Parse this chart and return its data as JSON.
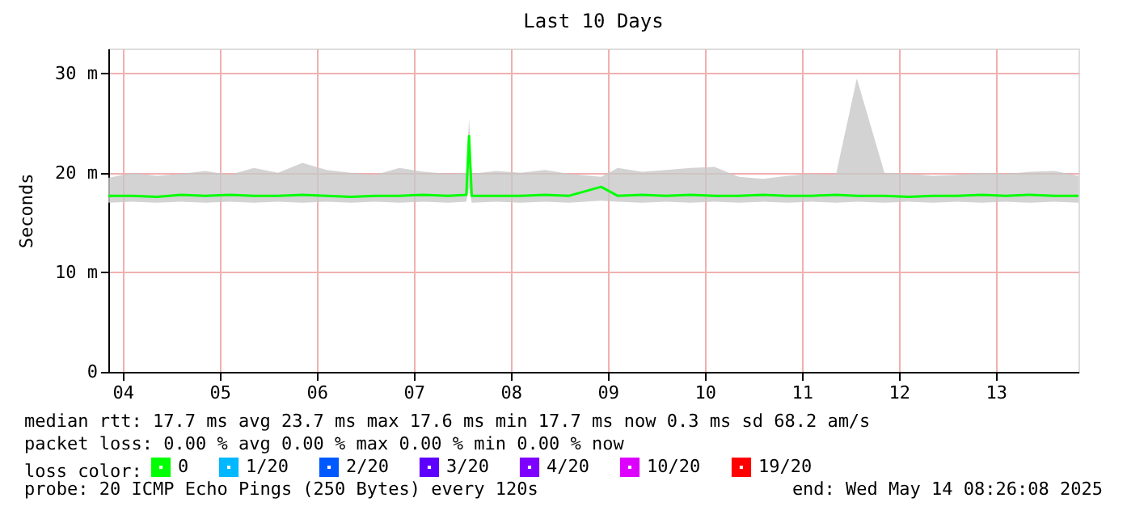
{
  "chart_data": {
    "type": "line",
    "title": "Last 10 Days",
    "ylabel": "Seconds",
    "xlim": [
      "2025-05-04T08:26",
      "2025-05-14T08:26"
    ],
    "xticks": [
      {
        "value": "2025-05-04T12:00",
        "label": "04"
      },
      {
        "value": "2025-05-05T12:00",
        "label": "05"
      },
      {
        "value": "2025-05-06T12:00",
        "label": "06"
      },
      {
        "value": "2025-05-07T12:00",
        "label": "07"
      },
      {
        "value": "2025-05-08T12:00",
        "label": "08"
      },
      {
        "value": "2025-05-09T12:00",
        "label": "09"
      },
      {
        "value": "2025-05-10T12:00",
        "label": "10"
      },
      {
        "value": "2025-05-11T12:00",
        "label": "11"
      },
      {
        "value": "2025-05-12T12:00",
        "label": "12"
      },
      {
        "value": "2025-05-13T12:00",
        "label": "13"
      }
    ],
    "ylim": [
      0,
      32.5
    ],
    "yticks": [
      0,
      {
        "value": 10,
        "label": "10 m"
      },
      {
        "value": 20,
        "label": "20 m"
      },
      {
        "value": 30,
        "label": "30 m"
      }
    ],
    "grid": true,
    "legend": "bottom",
    "legend_title": "loss color:",
    "x": [
      "2025-05-04T08:26",
      "2025-05-04T14:26",
      "2025-05-04T20:26",
      "2025-05-05T02:26",
      "2025-05-05T08:26",
      "2025-05-05T14:26",
      "2025-05-05T20:26",
      "2025-05-06T02:26",
      "2025-05-06T08:26",
      "2025-05-06T14:26",
      "2025-05-06T20:26",
      "2025-05-07T02:26",
      "2025-05-07T08:26",
      "2025-05-07T14:26",
      "2025-05-07T20:26",
      "2025-05-08T01:00",
      "2025-05-08T01:40",
      "2025-05-08T02:20",
      "2025-05-08T08:26",
      "2025-05-08T14:26",
      "2025-05-08T20:26",
      "2025-05-09T02:26",
      "2025-05-09T10:20",
      "2025-05-09T14:26",
      "2025-05-09T20:26",
      "2025-05-10T02:26",
      "2025-05-10T08:26",
      "2025-05-10T14:26",
      "2025-05-10T20:26",
      "2025-05-11T02:26",
      "2025-05-11T08:26",
      "2025-05-11T14:26",
      "2025-05-11T20:26",
      "2025-05-12T01:36",
      "2025-05-12T08:26",
      "2025-05-12T14:26",
      "2025-05-12T20:26",
      "2025-05-13T02:26",
      "2025-05-13T08:26",
      "2025-05-13T14:26",
      "2025-05-13T20:26",
      "2025-05-14T02:26",
      "2025-05-14T08:26"
    ],
    "series": [
      {
        "name": "0",
        "color": "#00ff00",
        "values": [
          17.7,
          17.7,
          17.6,
          17.8,
          17.7,
          17.8,
          17.7,
          17.7,
          17.8,
          17.7,
          17.6,
          17.7,
          17.7,
          17.8,
          17.7,
          17.8,
          23.7,
          17.7,
          17.7,
          17.7,
          17.8,
          17.7,
          18.6,
          17.7,
          17.8,
          17.7,
          17.8,
          17.7,
          17.7,
          17.8,
          17.7,
          17.7,
          17.8,
          17.7,
          17.7,
          17.6,
          17.7,
          17.7,
          17.8,
          17.7,
          17.8,
          17.7,
          17.7
        ],
        "lower": [
          17.0,
          17.1,
          17.0,
          17.1,
          17.0,
          17.1,
          17.0,
          17.1,
          17.0,
          17.1,
          17.0,
          17.1,
          17.0,
          17.1,
          17.0,
          17.1,
          18.5,
          17.0,
          17.1,
          17.0,
          17.1,
          17.0,
          17.2,
          17.1,
          17.0,
          17.1,
          17.0,
          17.1,
          17.0,
          17.1,
          17.0,
          17.1,
          17.0,
          17.1,
          17.0,
          17.1,
          17.0,
          17.1,
          17.0,
          17.1,
          17.0,
          17.1,
          17.0
        ],
        "upper": [
          19.5,
          20.0,
          19.7,
          19.9,
          20.2,
          19.8,
          20.5,
          20.0,
          21.0,
          20.3,
          20.0,
          19.8,
          20.5,
          20.1,
          19.9,
          20.0,
          25.5,
          19.9,
          20.2,
          20.0,
          20.3,
          19.9,
          19.6,
          20.5,
          20.1,
          20.3,
          20.5,
          20.6,
          19.6,
          19.4,
          19.7,
          19.9,
          19.8,
          29.5,
          20.0,
          19.9,
          19.7,
          19.8,
          20.0,
          19.9,
          20.1,
          20.2,
          19.7
        ]
      },
      {
        "name": "1/20",
        "color": "#00b8ff",
        "values": [
          null,
          null,
          null,
          null,
          null,
          null,
          null,
          null,
          null,
          null,
          null,
          null,
          null,
          null,
          null,
          null,
          null,
          null,
          null,
          null,
          null,
          null,
          null,
          null,
          null,
          null,
          null,
          null,
          null,
          null,
          null,
          null,
          null,
          null,
          null,
          null,
          null,
          null,
          null,
          null,
          null,
          null,
          null
        ]
      },
      {
        "name": "2/20",
        "color": "#0059ff",
        "values": [
          null,
          null,
          null,
          null,
          null,
          null,
          null,
          null,
          null,
          null,
          null,
          null,
          null,
          null,
          null,
          null,
          null,
          null,
          null,
          null,
          null,
          null,
          null,
          null,
          null,
          null,
          null,
          null,
          null,
          null,
          null,
          null,
          null,
          null,
          null,
          null,
          null,
          null,
          null,
          null,
          null,
          null,
          null
        ]
      },
      {
        "name": "3/20",
        "color": "#5e00ff",
        "values": [
          null,
          null,
          null,
          null,
          null,
          null,
          null,
          null,
          null,
          null,
          null,
          null,
          null,
          null,
          null,
          null,
          null,
          null,
          null,
          null,
          null,
          null,
          null,
          null,
          null,
          null,
          null,
          null,
          null,
          null,
          null,
          null,
          null,
          null,
          null,
          null,
          null,
          null,
          null,
          null,
          null,
          null,
          null
        ]
      },
      {
        "name": "4/20",
        "color": "#7e00ff",
        "values": [
          null,
          null,
          null,
          null,
          null,
          null,
          null,
          null,
          null,
          null,
          null,
          null,
          null,
          null,
          null,
          null,
          null,
          null,
          null,
          null,
          null,
          null,
          null,
          null,
          null,
          null,
          null,
          null,
          null,
          null,
          null,
          null,
          null,
          null,
          null,
          null,
          null,
          null,
          null,
          null,
          null,
          null,
          null
        ]
      },
      {
        "name": "10/20",
        "color": "#dd00ff",
        "values": [
          null,
          null,
          null,
          null,
          null,
          null,
          null,
          null,
          null,
          null,
          null,
          null,
          null,
          null,
          null,
          null,
          null,
          null,
          null,
          null,
          null,
          null,
          null,
          null,
          null,
          null,
          null,
          null,
          null,
          null,
          null,
          null,
          null,
          null,
          null,
          null,
          null,
          null,
          null,
          null,
          null,
          null,
          null
        ]
      },
      {
        "name": "19/20",
        "color": "#ff0000",
        "values": [
          null,
          null,
          null,
          null,
          null,
          null,
          null,
          null,
          null,
          null,
          null,
          null,
          null,
          null,
          null,
          null,
          null,
          null,
          null,
          null,
          null,
          null,
          null,
          null,
          null,
          null,
          null,
          null,
          null,
          null,
          null,
          null,
          null,
          null,
          null,
          null,
          null,
          null,
          null,
          null,
          null,
          null,
          null
        ]
      }
    ],
    "annotations": [
      "median rtt:  17.7 ms avg  23.7 ms max  17.6 ms min  17.7 ms now  0.3 ms sd  68.2   am/s",
      "packet loss: 0.00 % avg  0.00 % max  0.00 % min  0.00 % now",
      "probe:        20 ICMP Echo Pings (250 Bytes) every 120s",
      "end: Wed May 14 08:26:08 2025"
    ]
  }
}
